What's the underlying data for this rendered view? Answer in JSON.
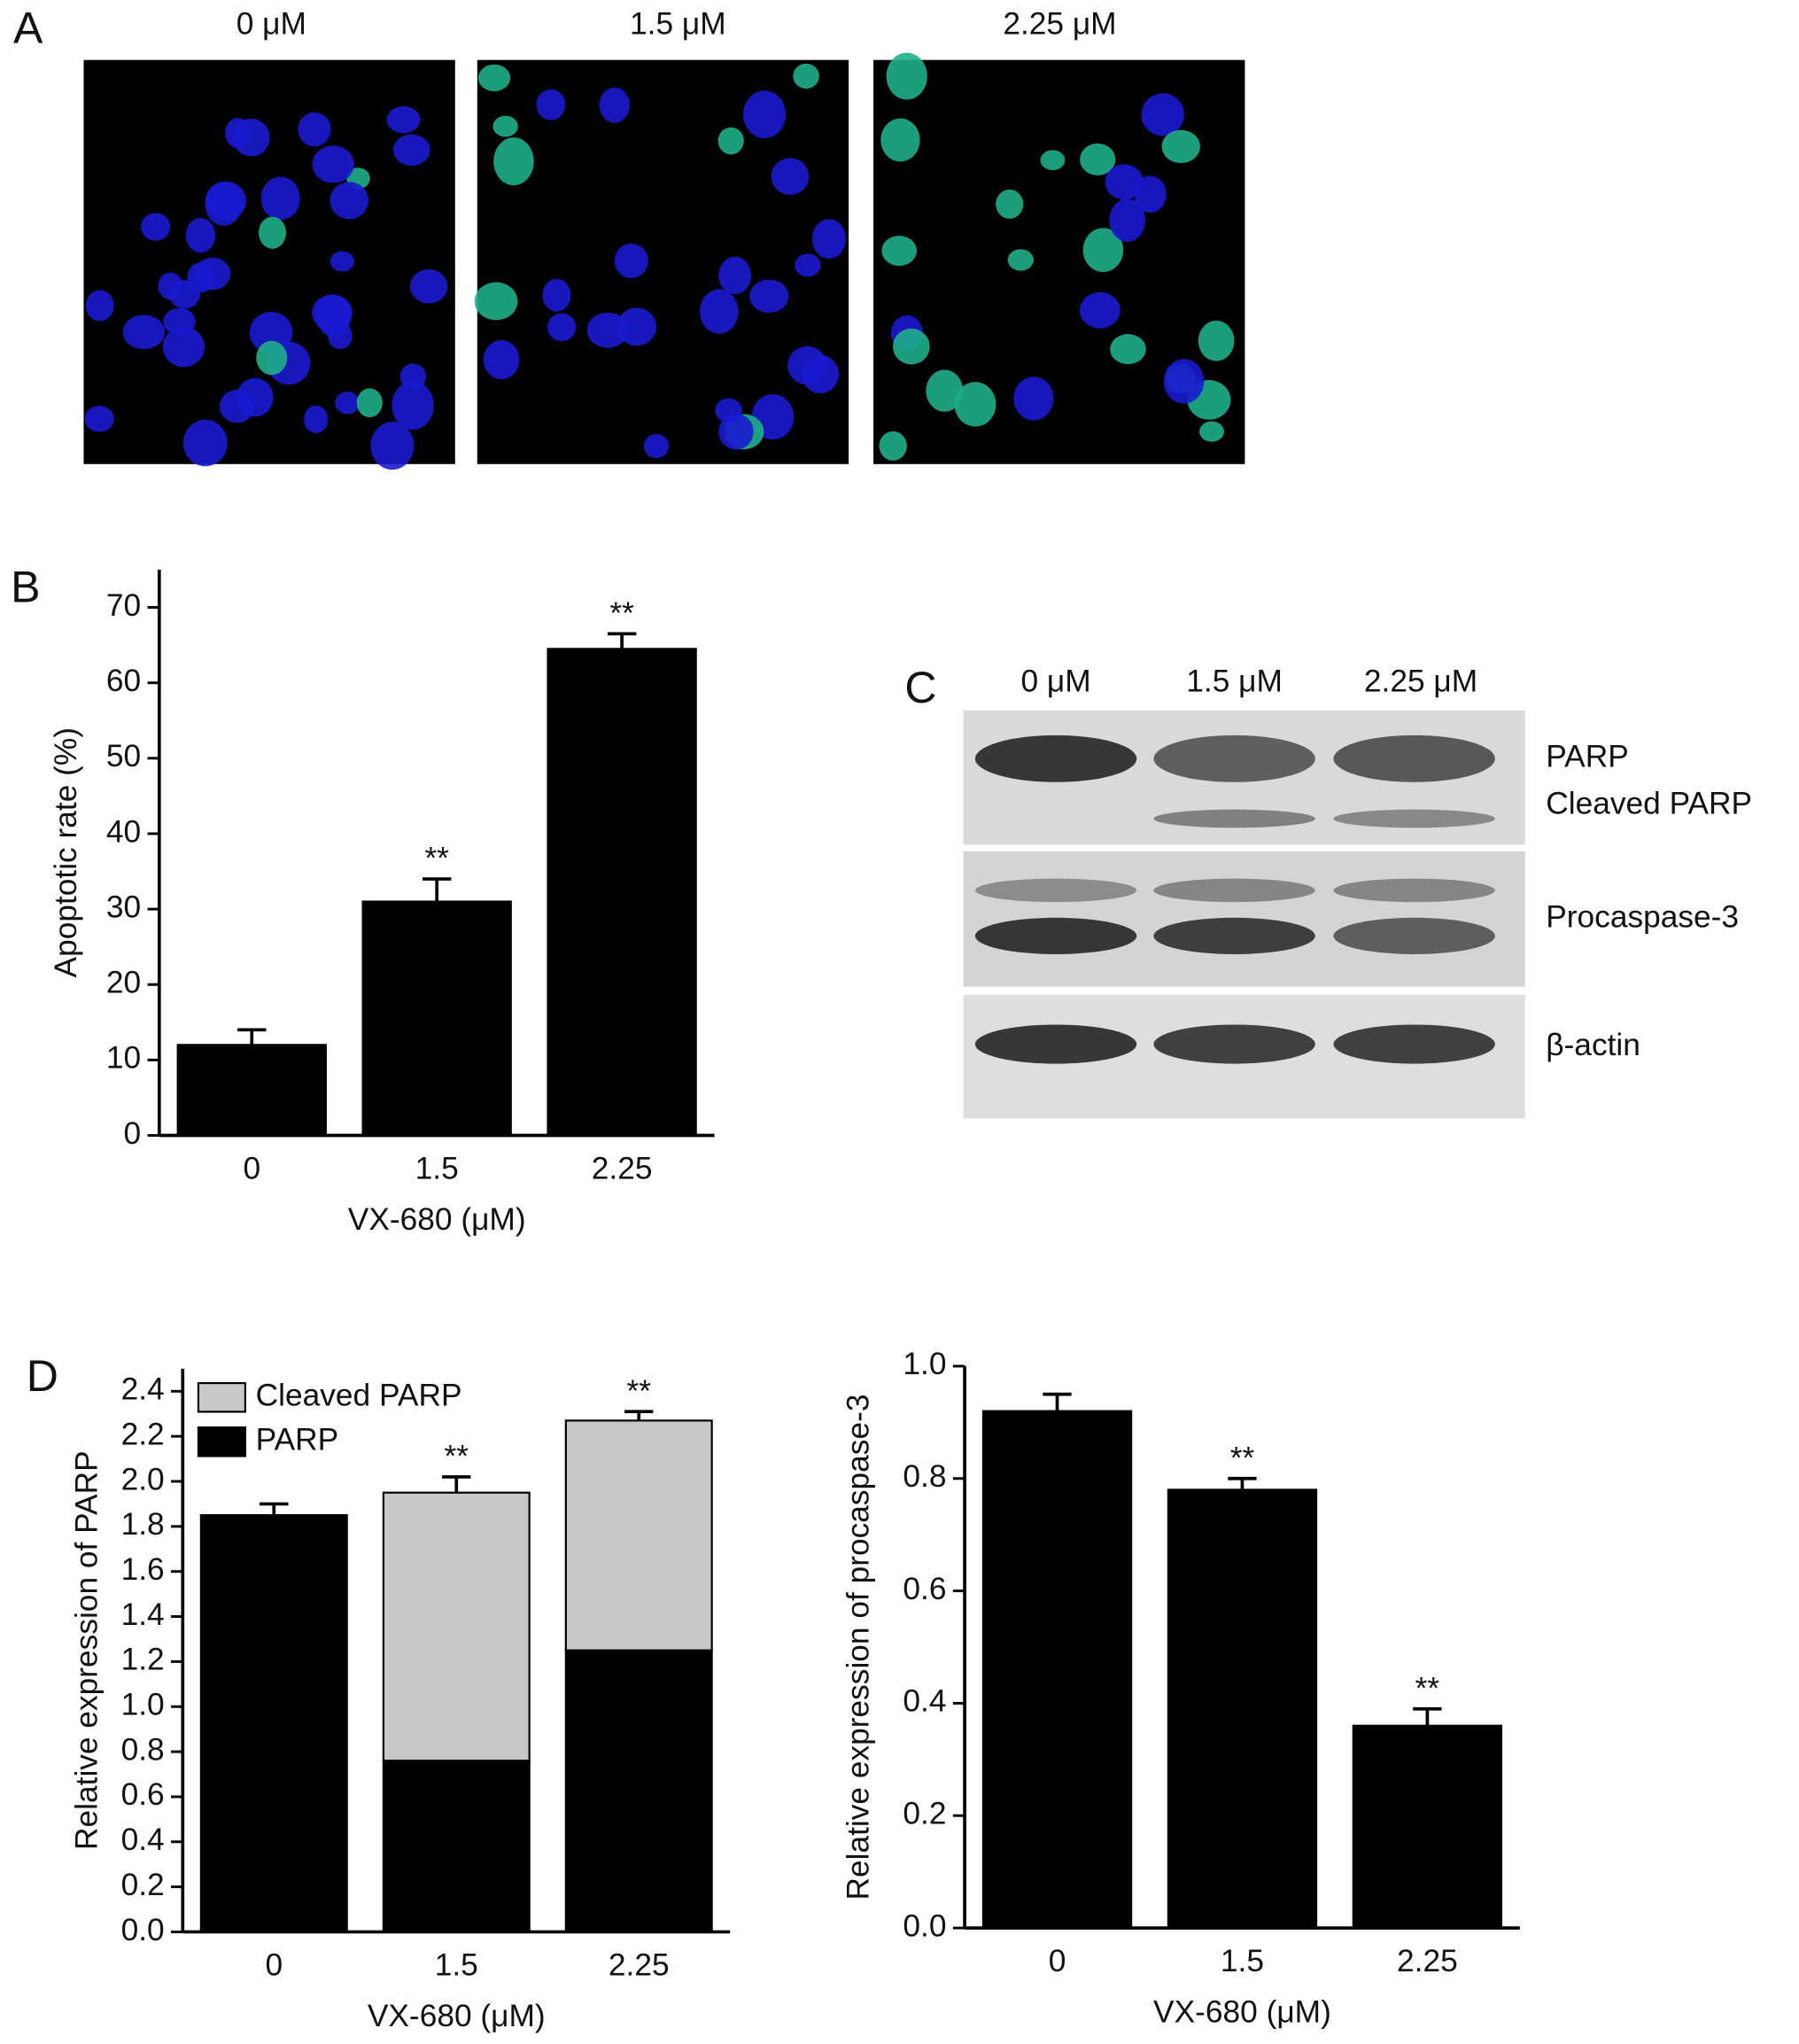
{
  "panel_labels": [
    "A",
    "B",
    "C",
    "D"
  ],
  "microscopy": {
    "labels": [
      "0 μM",
      "1.5 μM",
      "2.25 μM"
    ]
  },
  "western_blot": {
    "lanes": [
      "0 μM",
      "1.5 μM",
      "2.25 μM"
    ],
    "proteins": [
      "PARP",
      "Cleaved PARP",
      "Procaspase-3",
      "β-actin"
    ]
  },
  "chart_data": [
    {
      "type": "bar",
      "categories": [
        "0",
        "1.5",
        "2.25"
      ],
      "values": [
        12,
        31,
        64.5
      ],
      "errors": [
        2,
        3,
        2
      ],
      "annotations": [
        null,
        "**",
        "**"
      ],
      "color": "#000000",
      "xlabel": "VX-680 (μM)",
      "ylabel": "Apoptotic rate (%)",
      "ylim": [
        0,
        75
      ],
      "yticks": [
        0,
        10,
        20,
        30,
        40,
        50,
        60,
        70
      ]
    },
    {
      "type": "bar",
      "stacked": true,
      "categories": [
        "0",
        "1.5",
        "2.25"
      ],
      "series": [
        {
          "name": "PARP",
          "color": "#000000",
          "values": [
            1.85,
            0.76,
            1.25
          ],
          "errors": [
            0.05,
            0.06,
            0.06
          ],
          "annotations": [
            null,
            "**",
            "**"
          ]
        },
        {
          "name": "Cleaved PARP",
          "color": "#c8c8c8",
          "values": [
            0,
            1.19,
            1.02
          ],
          "errors": [
            null,
            0.07,
            0.04
          ],
          "annotations": [
            null,
            "**",
            "**"
          ]
        }
      ],
      "legend": "upper left",
      "xlabel": "VX-680 (μM)",
      "ylabel": "Relative expression of PARP",
      "ylim": [
        0,
        2.5
      ],
      "yticks": [
        {
          "value": 0,
          "label": "0.0"
        },
        0.2,
        0.4,
        0.6,
        0.8,
        {
          "value": 1,
          "label": "1.0"
        },
        1.2,
        1.4,
        1.6,
        1.8,
        {
          "value": 2,
          "label": "2.0"
        },
        2.2,
        2.4
      ]
    },
    {
      "type": "bar",
      "categories": [
        "0",
        "1.5",
        "2.25"
      ],
      "values": [
        0.92,
        0.78,
        0.36
      ],
      "errors": [
        0.03,
        0.02,
        0.03
      ],
      "annotations": [
        null,
        "**",
        "**"
      ],
      "color": "#000000",
      "xlabel": "VX-680 (μM)",
      "ylabel": "Relative expression of procaspase-3",
      "ylim": [
        0,
        1
      ],
      "yticks": [
        {
          "value": 0,
          "label": "0.0"
        },
        0.2,
        0.4,
        0.6,
        0.8,
        {
          "value": 1,
          "label": "1.0"
        }
      ]
    }
  ]
}
